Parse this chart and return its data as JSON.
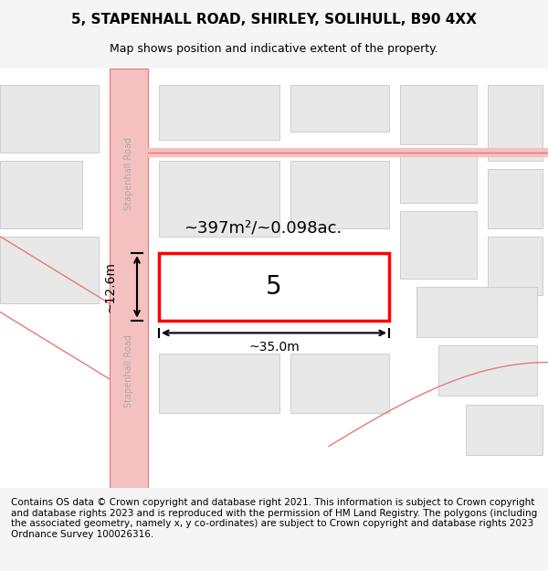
{
  "title": "5, STAPENHALL ROAD, SHIRLEY, SOLIHULL, B90 4XX",
  "subtitle": "Map shows position and indicative extent of the property.",
  "footer": "Contains OS data © Crown copyright and database right 2021. This information is subject to Crown copyright and database rights 2023 and is reproduced with the permission of HM Land Registry. The polygons (including the associated geometry, namely x, y co-ordinates) are subject to Crown copyright and database rights 2023 Ordnance Survey 100026316.",
  "bg_color": "#f5f5f5",
  "map_bg": "#ffffff",
  "road_color": "#f5c0c0",
  "road_border_color": "#e87878",
  "plot_color": "#e8e8e8",
  "plot_border_color": "#c8c8c8",
  "highlight_color": "#ffffff",
  "highlight_border": "#ff0000",
  "road_label": "Stapenhall Road",
  "property_number": "5",
  "area_label": "~397m²/~0.098ac.",
  "width_label": "~35.0m",
  "height_label": "~12.6m",
  "title_fontsize": 11,
  "subtitle_fontsize": 9,
  "footer_fontsize": 7.5
}
